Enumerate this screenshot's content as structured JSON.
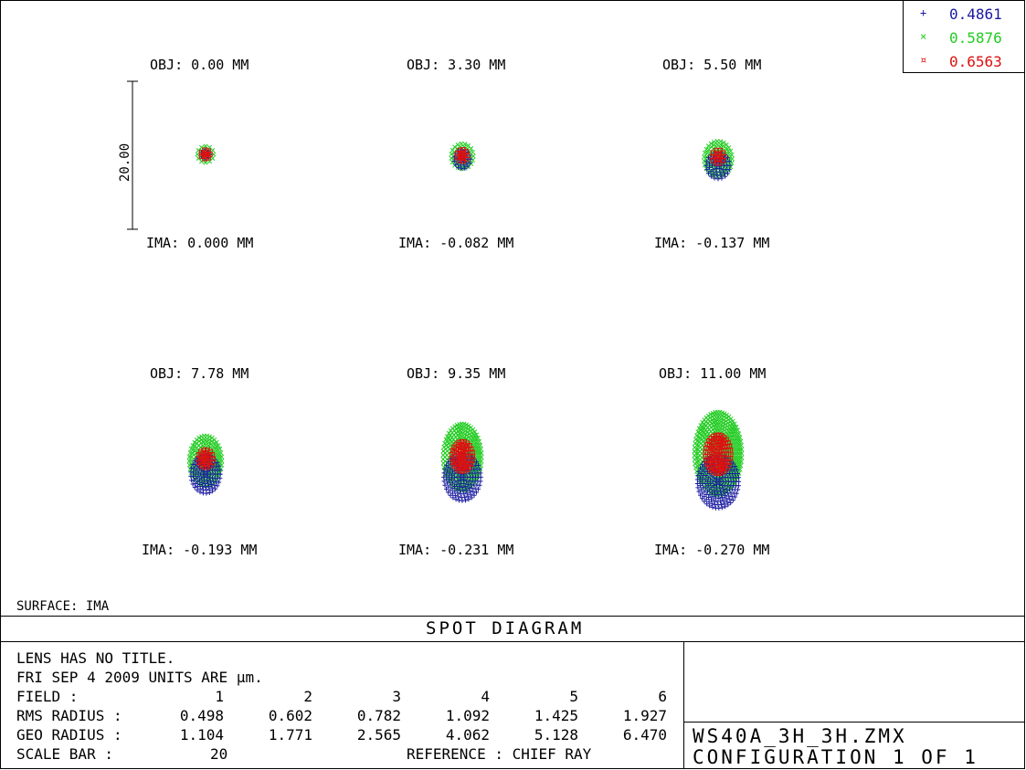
{
  "legend": [
    {
      "marker": "+",
      "label": "0.4861",
      "color": "#1a1aa0"
    },
    {
      "marker": "×",
      "label": "0.5876",
      "color": "#22cc22"
    },
    {
      "marker": "¤",
      "label": "0.6563",
      "color": "#dd1111"
    }
  ],
  "fields": [
    {
      "obj": "OBJ: 0.00 MM",
      "ima": "IMA: 0.000 MM"
    },
    {
      "obj": "OBJ: 3.30 MM",
      "ima": "IMA: -0.082 MM"
    },
    {
      "obj": "OBJ: 5.50 MM",
      "ima": "IMA: -0.137 MM"
    },
    {
      "obj": "OBJ: 7.78 MM",
      "ima": "IMA: -0.193 MM"
    },
    {
      "obj": "OBJ: 9.35 MM",
      "ima": "IMA: -0.231 MM"
    },
    {
      "obj": "OBJ: 11.00 MM",
      "ima": "IMA: -0.270 MM"
    }
  ],
  "scale_label": "20.00",
  "surface": "SURFACE: IMA",
  "title": "SPOT DIAGRAM",
  "info": {
    "line1": "LENS HAS NO TITLE.",
    "line2": "FRI SEP 4 2009  UNITS ARE µm.",
    "field_label": "FIELD      :",
    "field_values": [
      "1",
      "2",
      "3",
      "4",
      "5",
      "6"
    ],
    "rms_label": "RMS RADIUS :",
    "rms_values": [
      "0.498",
      "0.602",
      "0.782",
      "1.092",
      "1.425",
      "1.927"
    ],
    "geo_label": "GEO RADIUS :",
    "geo_values": [
      "1.104",
      "1.771",
      "2.565",
      "4.062",
      "5.128",
      "6.470"
    ],
    "scalebar_label": "SCALE BAR   :",
    "scalebar_value": "20",
    "reference": "REFERENCE   : CHIEF RAY"
  },
  "file_name": "WS40A_3H_3H.ZMX",
  "configuration": "CONFIGURATION 1 OF 1",
  "chart_data": {
    "type": "scatter",
    "title": "SPOT DIAGRAM",
    "units": "µm",
    "scale_bar": 20,
    "wavelengths": [
      0.4861,
      0.5876,
      0.6563
    ],
    "fields": [
      1,
      2,
      3,
      4,
      5,
      6
    ],
    "object_height_mm": [
      0.0,
      3.3,
      5.5,
      7.78,
      9.35,
      11.0
    ],
    "image_height_mm": [
      0.0,
      -0.082,
      -0.137,
      -0.193,
      -0.231,
      -0.27
    ],
    "rms_radius_um": [
      0.498,
      0.602,
      0.782,
      1.092,
      1.425,
      1.927
    ],
    "geo_radius_um": [
      1.104,
      1.771,
      2.565,
      4.062,
      5.128,
      6.47
    ],
    "reference": "CHIEF RAY",
    "spots_um": [
      [
        {
          "wl": 0.4861,
          "cy": 0.0,
          "rx": 0.6,
          "ry": 0.6
        },
        {
          "wl": 0.5876,
          "cy": 0.0,
          "rx": 1.1,
          "ry": 1.1
        },
        {
          "wl": 0.6563,
          "cy": 0.0,
          "rx": 0.6,
          "ry": 0.6
        }
      ],
      [
        {
          "wl": 0.4861,
          "cy": -0.4,
          "rx": 1.1,
          "ry": 1.3
        },
        {
          "wl": 0.5876,
          "cy": 0.0,
          "rx": 1.5,
          "ry": 1.7
        },
        {
          "wl": 0.6563,
          "cy": 0.1,
          "rx": 0.7,
          "ry": 0.8
        }
      ],
      [
        {
          "wl": 0.4861,
          "cy": -0.9,
          "rx": 1.6,
          "ry": 1.8
        },
        {
          "wl": 0.5876,
          "cy": 0.0,
          "rx": 1.9,
          "ry": 2.4
        },
        {
          "wl": 0.6563,
          "cy": 0.3,
          "rx": 0.8,
          "ry": 0.9
        }
      ],
      [
        {
          "wl": 0.4861,
          "cy": -1.5,
          "rx": 2.0,
          "ry": 2.6
        },
        {
          "wl": 0.5876,
          "cy": 0.3,
          "rx": 2.2,
          "ry": 3.4
        },
        {
          "wl": 0.6563,
          "cy": 0.6,
          "rx": 1.0,
          "ry": 1.2
        }
      ],
      [
        {
          "wl": 0.4861,
          "cy": -1.9,
          "rx": 2.5,
          "ry": 3.2
        },
        {
          "wl": 0.5876,
          "cy": 0.8,
          "rx": 2.6,
          "ry": 4.5
        },
        {
          "wl": 0.6563,
          "cy": 0.9,
          "rx": 1.4,
          "ry": 2.0
        }
      ],
      [
        {
          "wl": 0.4861,
          "cy": -2.5,
          "rx": 2.8,
          "ry": 3.6
        },
        {
          "wl": 0.5876,
          "cy": 1.3,
          "rx": 3.2,
          "ry": 5.6
        },
        {
          "wl": 0.6563,
          "cy": 1.2,
          "rx": 1.7,
          "ry": 2.6
        }
      ]
    ]
  }
}
